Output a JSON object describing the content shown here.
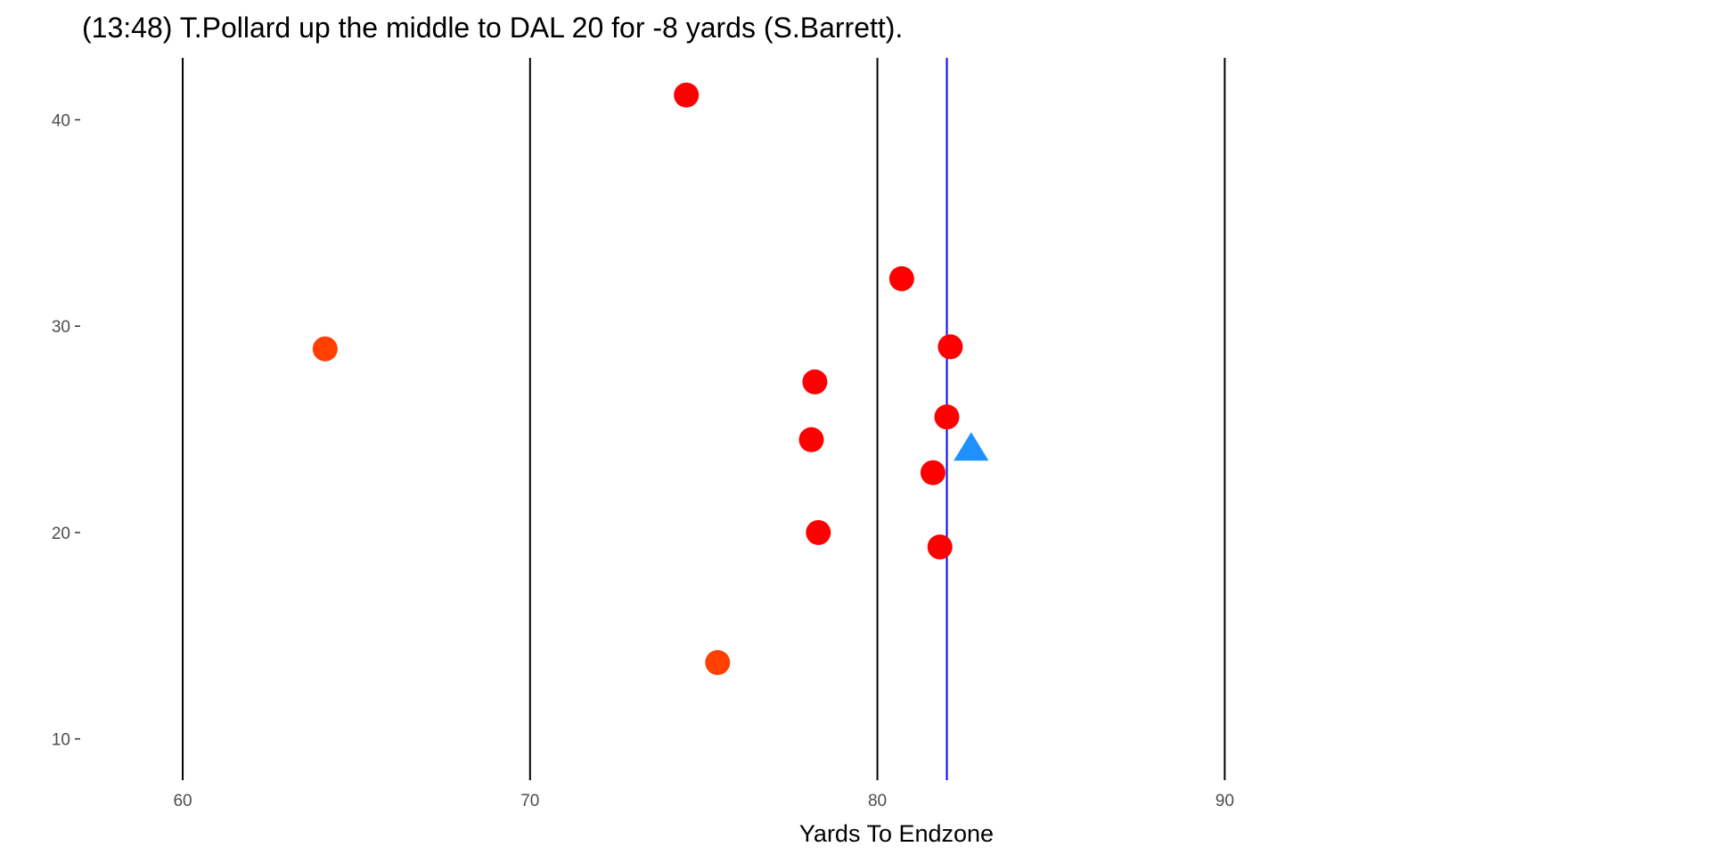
{
  "chart_data": {
    "type": "scatter",
    "title": "(13:48) T.Pollard up the middle to DAL 20 for -8 yards (S.Barrett).",
    "xlabel": "Yards To Endzone",
    "ylabel": "",
    "xlim": [
      57.1,
      104.0
    ],
    "ylim": [
      8.0,
      43.0
    ],
    "x_ticks": [
      60,
      70,
      80,
      90
    ],
    "y_ticks": [
      10,
      20,
      30,
      40
    ],
    "grid": false,
    "yard_lines": [
      60,
      70,
      80,
      90
    ],
    "line_of_scrimmage": 82,
    "series": [
      {
        "marker": "circle",
        "color": "#FF0000",
        "points": [
          {
            "x": 74.5,
            "y": 41.2
          },
          {
            "x": 80.7,
            "y": 32.3
          },
          {
            "x": 82.1,
            "y": 29.0
          },
          {
            "x": 78.2,
            "y": 27.3
          },
          {
            "x": 82.0,
            "y": 25.6
          },
          {
            "x": 78.1,
            "y": 24.5
          },
          {
            "x": 81.6,
            "y": 22.9
          },
          {
            "x": 78.3,
            "y": 20.0
          },
          {
            "x": 81.8,
            "y": 19.3
          }
        ]
      },
      {
        "marker": "circle",
        "color": "#FF4000",
        "points": [
          {
            "x": 64.1,
            "y": 28.9
          },
          {
            "x": 75.4,
            "y": 13.7
          }
        ]
      },
      {
        "marker": "triangle",
        "color": "#1E90FF",
        "points": [
          {
            "x": 82.7,
            "y": 24.0
          }
        ]
      }
    ]
  }
}
